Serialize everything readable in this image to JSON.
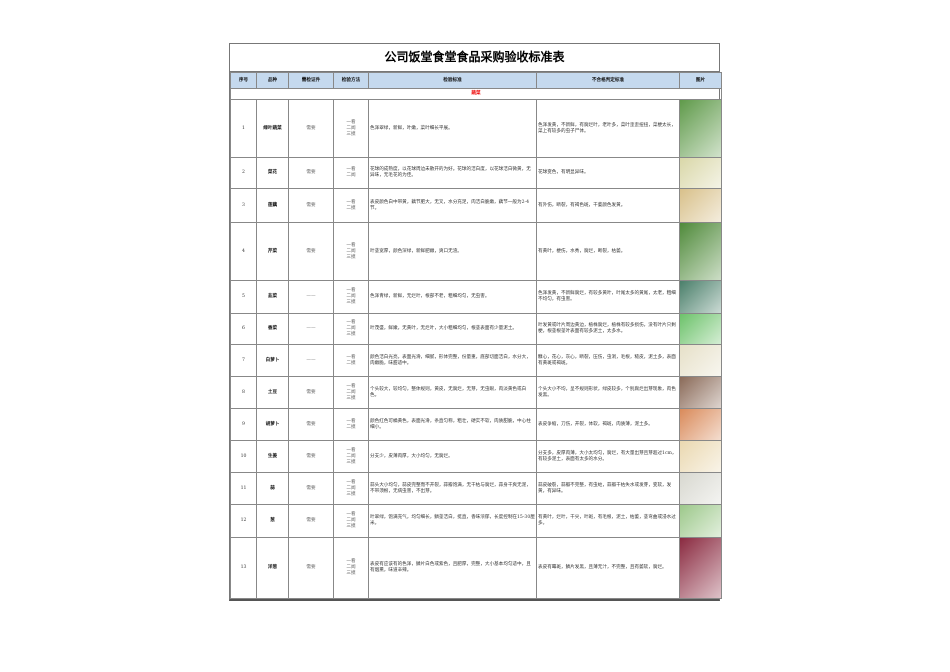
{
  "title": "公司饭堂食堂食品采购验收标准表",
  "headers": [
    "序号",
    "品种",
    "需检证件",
    "检验方法",
    "检验标准",
    "不合格判定标准",
    "图片"
  ],
  "section": "蔬菜",
  "rows": [
    {
      "no": "1",
      "name": "绿叶蔬菜",
      "cert": "需要",
      "method": "一看\n二闻\n三摸",
      "std": "色泽翠绿，新鲜，叶嫩，菜叶细长平展。",
      "fail": "色泽发黄，不新鲜，有腐烂叶，老叶多，菜叶歪歪扭扭，菜梗太长，菜上有较多的虫子尸体。",
      "img_color": "#5f9a4a"
    },
    {
      "no": "2",
      "name": "菜花",
      "cert": "需要",
      "method": "一看\n二闻",
      "std": "花球的成熟度，以花球周边未散开的为好。花球的洁白度，以花球洁白微黄，无异味，无毛花的为佳。",
      "fail": "花球变色，有明显异味。",
      "img_color": "#d9d7a8"
    },
    {
      "no": "3",
      "name": "莲藕",
      "cert": "需要",
      "method": "一看\n二摸",
      "std": "表皮颜色白中带黄，藕节肥大，无叉，水分充足，肉洁白脆嫩，藕节一般为2-4节。",
      "fail": "有外伤，断裂，有褐色斑，干萎颜色发黄。",
      "img_color": "#d8c08a"
    },
    {
      "no": "4",
      "name": "芹菜",
      "cert": "需要",
      "method": "一看\n二闻\n三摸",
      "std": "叶茎宽厚，颜色深绿，新鲜肥嫩，爽口无渣。",
      "fail": "有黄叶，梗伤，水秀，腐烂，断裂，枯萎。",
      "img_color": "#4f8a3a"
    },
    {
      "no": "5",
      "name": "韭菜",
      "cert": "——",
      "method": "一看\n二闻\n三摸",
      "std": "色泽青绿，新鲜，无烂叶，根部不老，粗细均匀，无虫害。",
      "fail": "色泽发黄，不新鲜腐烂，有较多黄叶，叶尾太多的黄尾，太老，粗细不均匀，有虫害。",
      "img_color": "#4a7f6a"
    },
    {
      "no": "6",
      "name": "香菜",
      "cert": "——",
      "method": "一看\n二闻\n三摸",
      "std": "叶茂盛，鲜嫩，无黄叶，无烂叶，大小粗细均匀，根茎表面有少量泥土。",
      "fail": "叶发黄或叶片周边黄边，植株腐烂，植株有较多损伤，没有叶片只剩梗，根茎根茎叶表面有较多泥土，太多水。",
      "img_color": "#6cc26a"
    },
    {
      "no": "7",
      "name": "白萝卜",
      "cert": "——",
      "method": "一看\n二摸",
      "std": "颜色洁白光亮，表面光滑，细腻，形体完整，份量重，底部切面洁白，水分大，肉嫩脆，味甜适中。",
      "fail": "糠心，花心，灰心，断裂，压伤，虫洞，毛根，糙皮，泥土多，表面有黄斑或褐斑。",
      "img_color": "#e6e0c8"
    },
    {
      "no": "8",
      "name": "土豆",
      "cert": "需要",
      "method": "一看\n二闻\n三摸",
      "std": "个头较大，较均匀，整体规则，黄皮，无腐烂，无芽，无虫眼，肉淡黄色或白色。",
      "fail": "个头大小不均，呈不规则形状，绿皮较多，个别腐烂出芽现象，肉色发黑。",
      "img_color": "#8a6a58"
    },
    {
      "no": "9",
      "name": "胡萝卜",
      "cert": "需要",
      "method": "一看\n二摸",
      "std": "颜色红色可橘黄色，表面光滑，条直匀称，粗壮，硬实不软，肉质甜脆，中心柱细小。",
      "fail": "表皮争缩，刀伤，开裂，体软，褐斑，肉质薄，泥土多。",
      "img_color": "#d98a5a"
    },
    {
      "no": "10",
      "name": "生姜",
      "cert": "需要",
      "method": "一看\n二闻\n三摸",
      "std": "分支少，皮薄肉厚，大小均匀，无腐烂。",
      "fail": "分支多，皮厚肉薄，大小太均匀，腐烂，有大量出芽且芽超过1cm，有较多泥土，表面有太多的水分。",
      "img_color": "#ead8b0"
    },
    {
      "no": "11",
      "name": "蒜",
      "cert": "需要",
      "method": "一看\n二闻\n三摸",
      "std": "蒜头大小均匀，蒜皮完整而不开裂，蒜瓣饱满，无干枯与腐烂，蒜身干爽无泥，不带须根，无病虫害，不出芽。",
      "fail": "蒜皮破裂，蒜瓣不完整，有虫蛀，蒜瓣干枯失水或发芽，变软，发黄，有异味。",
      "img_color": "#d8d8d0"
    },
    {
      "no": "12",
      "name": "葱",
      "cert": "需要",
      "method": "一看\n二闻\n三摸",
      "std": "叶翠绿，饱满充气，均匀细长，鳞茎洁白，挺直，香味浓郁，长度控制在15-30厘米。",
      "fail": "有黄叶，烂叶，干尖，叶斑，有毛根，泥土，枯萎，茎弯曲或浸水过多。",
      "img_color": "#9cc88a"
    },
    {
      "no": "13",
      "name": "洋葱",
      "cert": "需要",
      "method": "一看\n二闻\n三摸",
      "std": "表皮有应该有的色泽，鳞片白色或紫色，且肥厚，完整，大小基本均匀适中，且有烟熏，味道辛辣。",
      "fail": "表皮有霉斑，鳞片发黑，且薄无汁，不完整，且有萎软，腐烂。",
      "img_color": "#8a2a40"
    }
  ]
}
